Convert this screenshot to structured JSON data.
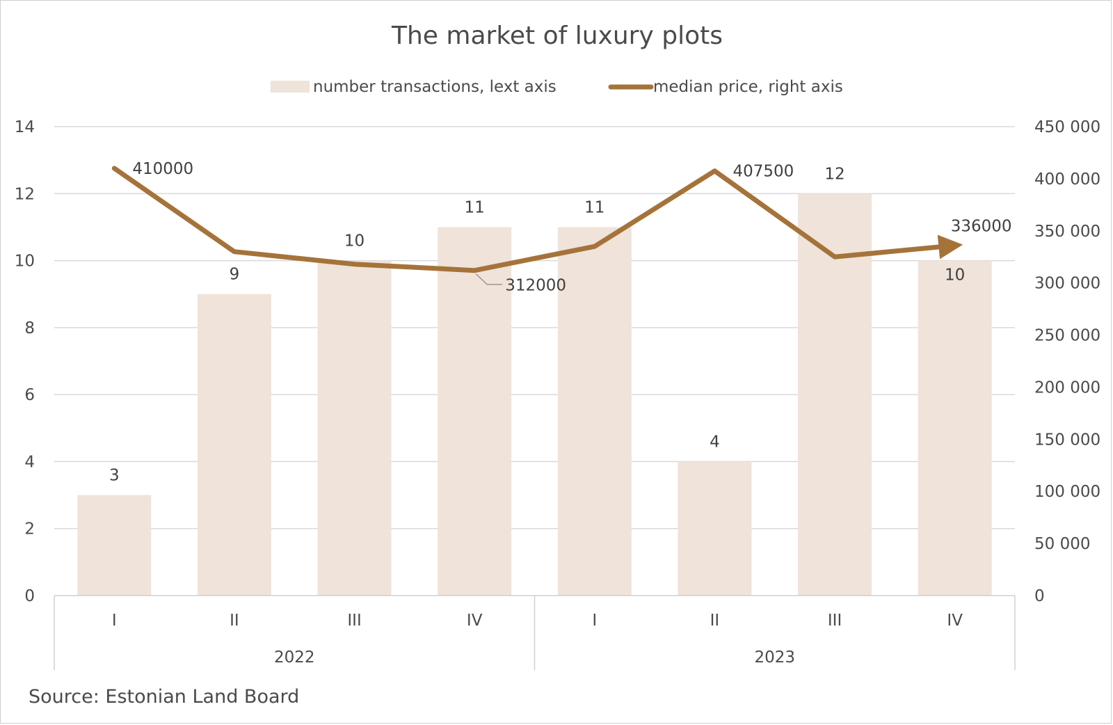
{
  "chart_data": {
    "type": "bar",
    "title": "The market of luxury plots",
    "source": "Source: Estonian Land Board",
    "categories": [
      "I",
      "II",
      "III",
      "IV",
      "I",
      "II",
      "III",
      "IV"
    ],
    "groups": [
      {
        "label": "2022",
        "start": 0,
        "end": 3
      },
      {
        "label": "2023",
        "start": 4,
        "end": 7
      }
    ],
    "series": [
      {
        "name": "number transactions, lext axis",
        "type": "bar",
        "axis": "left",
        "color": "#efe3da",
        "values": [
          3,
          9,
          10,
          11,
          11,
          4,
          12,
          10
        ],
        "labels": [
          "3",
          "9",
          "10",
          "11",
          "11",
          "4",
          "12",
          "10"
        ]
      },
      {
        "name": "median price, right axis",
        "type": "line",
        "axis": "right",
        "color": "#a5733a",
        "values": [
          410000,
          330000,
          318000,
          312000,
          335000,
          407500,
          325000,
          336000
        ],
        "labels": [
          "410000",
          "",
          "",
          "312000",
          "",
          "407500",
          "",
          "336000"
        ]
      }
    ],
    "y_left": {
      "min": 0,
      "max": 14,
      "ticks": [
        "0",
        "2",
        "4",
        "6",
        "8",
        "10",
        "12",
        "14"
      ]
    },
    "y_right": {
      "min": 0,
      "max": 450000,
      "ticks": [
        "0",
        "50 000",
        "100 000",
        "150 000",
        "200 000",
        "250 000",
        "300 000",
        "350 000",
        "400 000",
        "450 000"
      ]
    },
    "grid": true,
    "legend_position": "top"
  }
}
